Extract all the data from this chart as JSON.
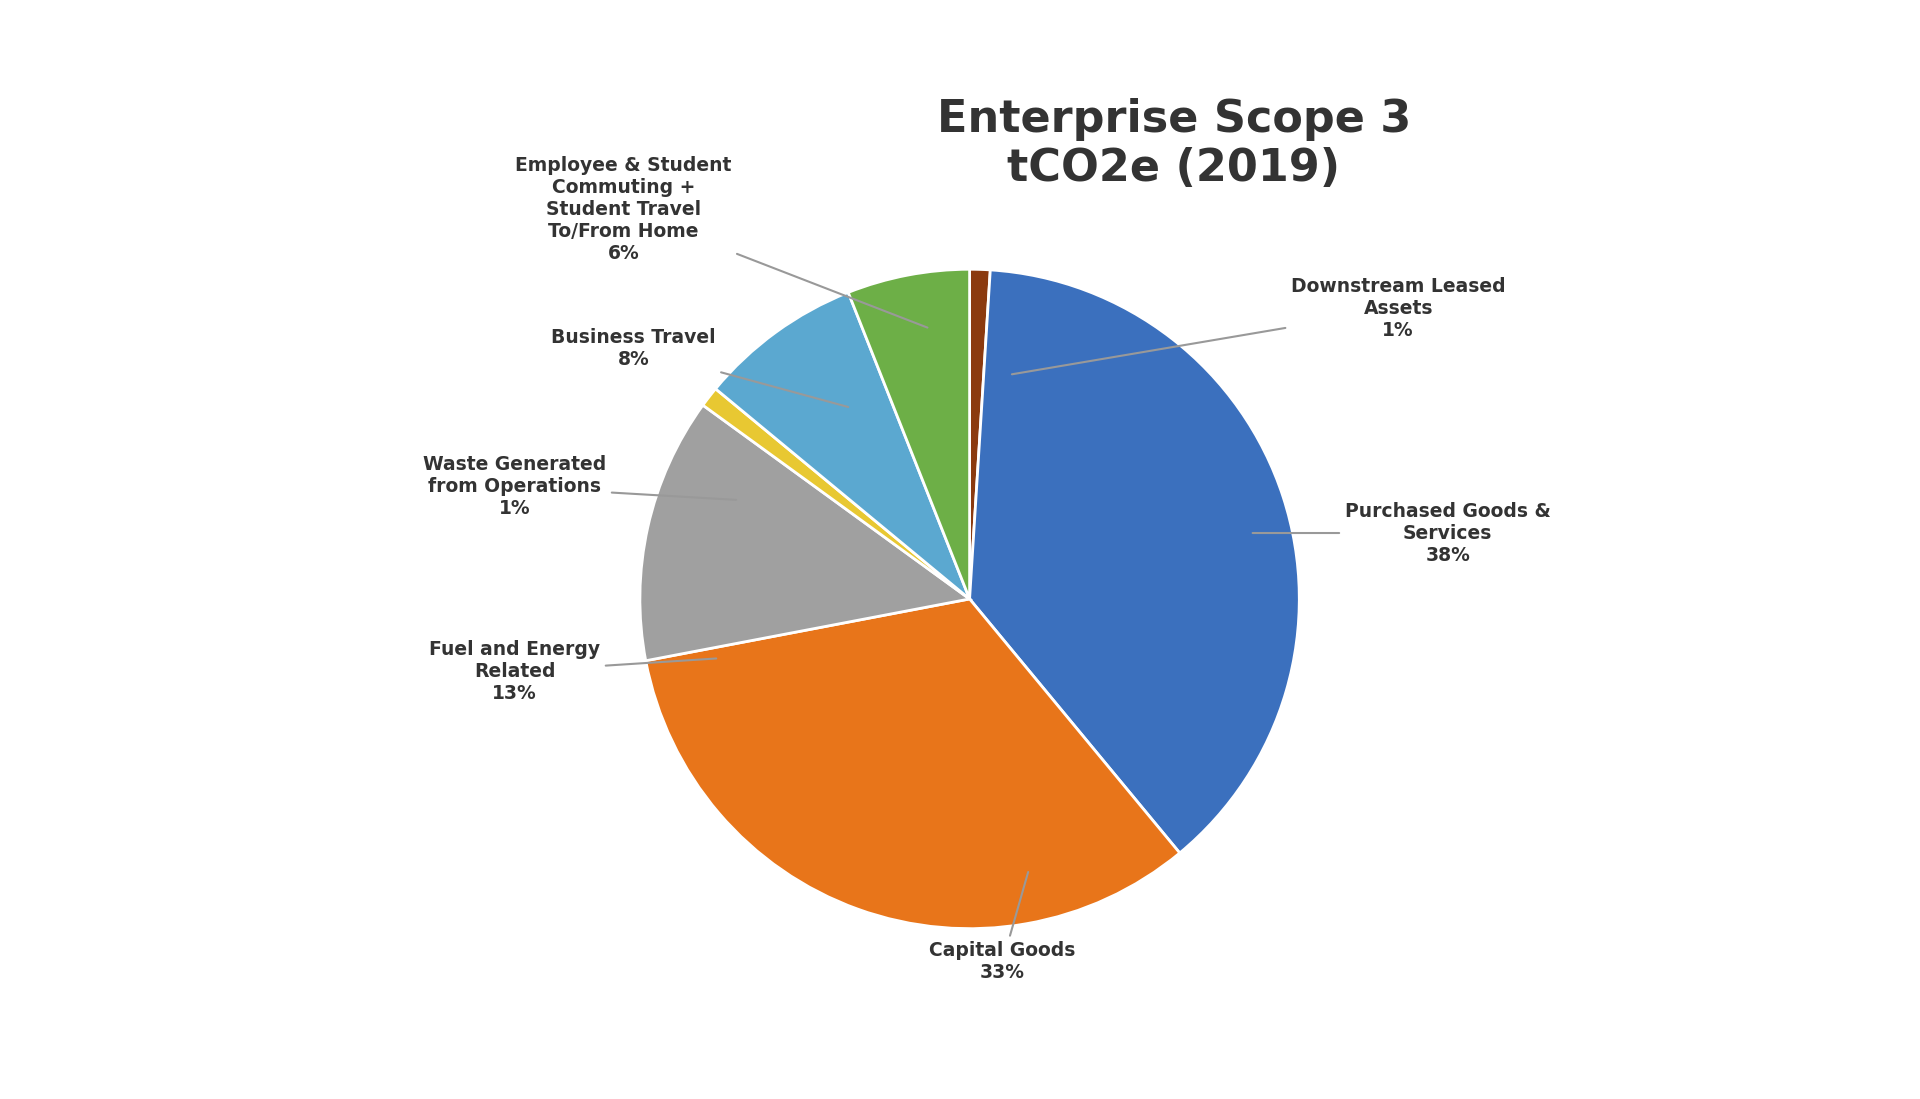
{
  "title": "Enterprise Scope 3\ntCO2e (2019)",
  "title_fontsize": 32,
  "background_color": "#ffffff",
  "slices": [
    {
      "label": "Downstream Leased\nAssets\n1%",
      "value": 1,
      "color": "#8B3A0F"
    },
    {
      "label": "Purchased Goods &\nServices\n38%",
      "value": 38,
      "color": "#3B70BE"
    },
    {
      "label": "Capital Goods\n33%",
      "value": 33,
      "color": "#E8751A"
    },
    {
      "label": "Fuel and Energy\nRelated\n13%",
      "value": 13,
      "color": "#A0A0A0"
    },
    {
      "label": "Waste Generated\nfrom Operations\n1%",
      "value": 1,
      "color": "#E8C832"
    },
    {
      "label": "Business Travel\n8%",
      "value": 8,
      "color": "#5BA8D0"
    },
    {
      "label": "Employee & Student\nCommuting +\nStudent Travel\nTo/From Home\n6%",
      "value": 6,
      "color": "#6DAF47"
    }
  ],
  "label_data": [
    {
      "text": "Downstream Leased\nAssets\n1%",
      "txy": [
        1.3,
        0.88
      ],
      "axy": [
        0.12,
        0.68
      ]
    },
    {
      "text": "Purchased Goods &\nServices\n38%",
      "txy": [
        1.45,
        0.2
      ],
      "axy": [
        0.85,
        0.2
      ]
    },
    {
      "text": "Capital Goods\n33%",
      "txy": [
        0.1,
        -1.1
      ],
      "axy": [
        0.18,
        -0.82
      ]
    },
    {
      "text": "Fuel and Energy\nRelated\n13%",
      "txy": [
        -1.38,
        -0.22
      ],
      "axy": [
        -0.76,
        -0.18
      ]
    },
    {
      "text": "Waste Generated\nfrom Operations\n1%",
      "txy": [
        -1.38,
        0.34
      ],
      "axy": [
        -0.7,
        0.3
      ]
    },
    {
      "text": "Business Travel\n8%",
      "txy": [
        -1.02,
        0.76
      ],
      "axy": [
        -0.36,
        0.58
      ]
    },
    {
      "text": "Employee & Student\nCommuting +\nStudent Travel\nTo/From Home\n6%",
      "txy": [
        -1.05,
        1.18
      ],
      "axy": [
        -0.12,
        0.82
      ]
    }
  ]
}
